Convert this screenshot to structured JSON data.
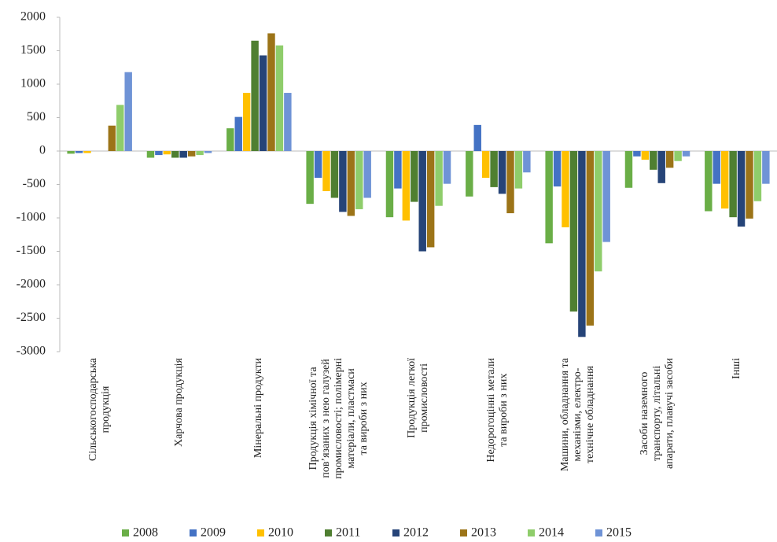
{
  "chart_data": {
    "type": "bar",
    "categories": [
      "Сільськогосподарська\nпродукція",
      "Харчова продукція",
      "Мінеральні продукти",
      "Продукція хімічної та\nпов’язаних з нею галузей\nпромисловості; полімерні\nматеріали, пластмаси\nта вироби з них",
      "Продукція легкої\nпромисловості",
      "Недорогоцінні метали\nта вироби з них",
      "Машини, обладнання та\nмеханізми, електро-\nтехнічне обладнання",
      "Засоби наземного\nтранспорту, літальні\nапарати, плавучі засоби",
      "Інші"
    ],
    "series": [
      {
        "name": "2008",
        "color": "#6aae47",
        "values": [
          -40,
          -100,
          340,
          -790,
          -990,
          -680,
          -1380,
          -550,
          -900
        ]
      },
      {
        "name": "2009",
        "color": "#4472c4",
        "values": [
          -30,
          -60,
          510,
          -400,
          -560,
          390,
          -530,
          -80,
          -490
        ]
      },
      {
        "name": "2010",
        "color": "#ffc000",
        "values": [
          -30,
          -50,
          870,
          -600,
          -1040,
          -400,
          -1140,
          -130,
          -860
        ]
      },
      {
        "name": "2011",
        "color": "#4f7f31",
        "values": [
          0,
          -100,
          1650,
          -700,
          -760,
          -540,
          -2400,
          -280,
          -990
        ]
      },
      {
        "name": "2012",
        "color": "#264478",
        "values": [
          0,
          -100,
          1430,
          -910,
          -1500,
          -640,
          -2780,
          -480,
          -1130
        ]
      },
      {
        "name": "2013",
        "color": "#9c7418",
        "values": [
          380,
          -80,
          1760,
          -970,
          -1440,
          -930,
          -2610,
          -250,
          -1010
        ]
      },
      {
        "name": "2014",
        "color": "#8fcd6b",
        "values": [
          690,
          -60,
          1580,
          -870,
          -820,
          -560,
          -1800,
          -150,
          -750
        ]
      },
      {
        "name": "2015",
        "color": "#6f93d6",
        "values": [
          1180,
          -30,
          870,
          -700,
          -490,
          -320,
          -1360,
          -80,
          -490
        ]
      }
    ],
    "ylim": [
      -3000,
      2000
    ],
    "yticks": [
      -3000,
      -2500,
      -2000,
      -1500,
      -1000,
      -500,
      0,
      500,
      1000,
      1500,
      2000
    ]
  }
}
